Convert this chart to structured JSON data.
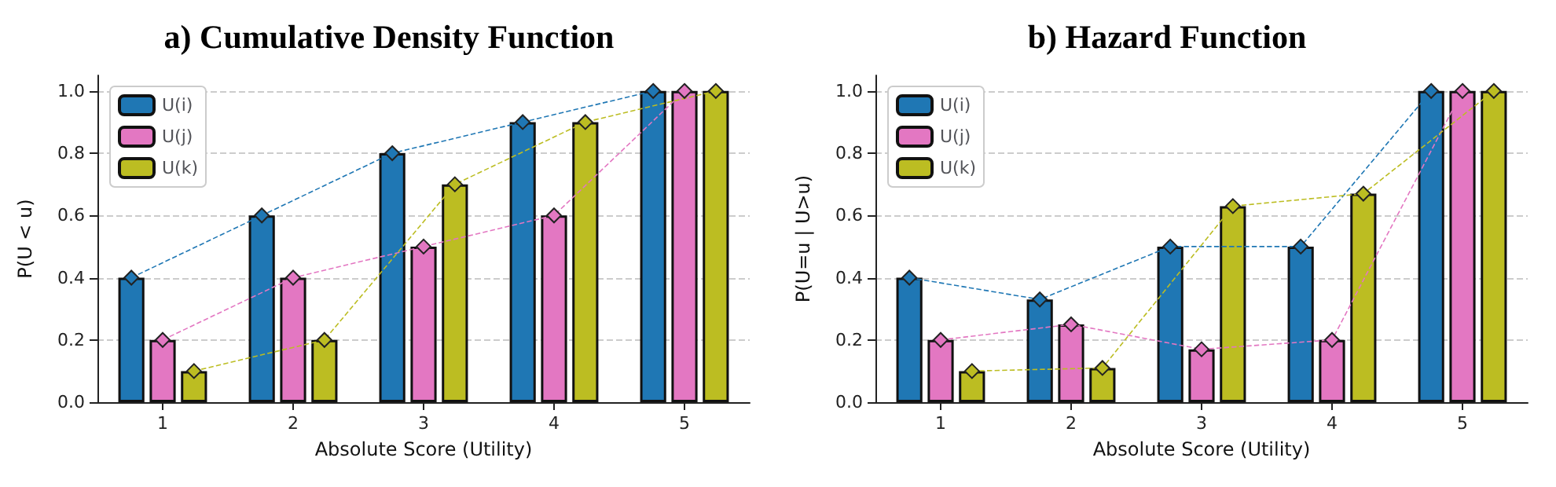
{
  "chart_data": [
    {
      "type": "bar",
      "title": "a) Cumulative Density Function",
      "xlabel": "Absolute Score (Utility)",
      "ylabel": "P(U < u)",
      "categories": [
        "1",
        "2",
        "3",
        "4",
        "5"
      ],
      "series": [
        {
          "name": "U(i)",
          "color": "#1f77b4",
          "values": [
            0.4,
            0.6,
            0.8,
            0.9,
            1.0
          ]
        },
        {
          "name": "U(j)",
          "color": "#e377c2",
          "values": [
            0.2,
            0.4,
            0.5,
            0.6,
            1.0
          ]
        },
        {
          "name": "U(k)",
          "color": "#bcbd22",
          "values": [
            0.1,
            0.2,
            0.7,
            0.9,
            1.0
          ]
        },
        {
          "type": "line",
          "color": "#1f77b4",
          "values": [
            0.4,
            0.6,
            0.8,
            0.9,
            1.0
          ]
        },
        {
          "type": "line",
          "color": "#e377c2",
          "values": [
            0.2,
            0.4,
            0.5,
            0.6,
            1.0
          ]
        },
        {
          "type": "line",
          "color": "#bcbd22",
          "values": [
            0.1,
            0.2,
            0.7,
            0.9,
            1.0
          ]
        }
      ],
      "ylim": [
        0,
        1.05
      ],
      "yticks": [
        {
          "value": 0,
          "label": "0.0"
        },
        {
          "value": 0.2,
          "label": "0.2"
        },
        {
          "value": 0.4,
          "label": "0.4"
        },
        {
          "value": 0.6,
          "label": "0.6"
        },
        {
          "value": 0.8,
          "label": "0.8"
        },
        {
          "value": 1,
          "label": "1.0"
        }
      ],
      "grid": "y",
      "legend": "top left",
      "marker": "diamond",
      "line_style": "dashed"
    },
    {
      "type": "bar",
      "title": "b) Hazard Function",
      "xlabel": "Absolute Score (Utility)",
      "ylabel": "P(U=u | U>u)",
      "categories": [
        "1",
        "2",
        "3",
        "4",
        "5"
      ],
      "series": [
        {
          "name": "U(i)",
          "color": "#1f77b4",
          "values": [
            0.4,
            0.33,
            0.5,
            0.5,
            1.0
          ]
        },
        {
          "name": "U(j)",
          "color": "#e377c2",
          "values": [
            0.2,
            0.25,
            0.17,
            0.2,
            1.0
          ]
        },
        {
          "name": "U(k)",
          "color": "#bcbd22",
          "values": [
            0.1,
            0.11,
            0.63,
            0.67,
            1.0
          ]
        },
        {
          "type": "line",
          "color": "#1f77b4",
          "values": [
            0.4,
            0.33,
            0.5,
            0.5,
            1.0
          ]
        },
        {
          "type": "line",
          "color": "#e377c2",
          "values": [
            0.2,
            0.25,
            0.17,
            0.2,
            1.0
          ]
        },
        {
          "type": "line",
          "color": "#bcbd22",
          "values": [
            0.1,
            0.11,
            0.63,
            0.67,
            1.0
          ]
        }
      ],
      "ylim": [
        0,
        1.05
      ],
      "yticks": [
        {
          "value": 0,
          "label": "0.0"
        },
        {
          "value": 0.2,
          "label": "0.2"
        },
        {
          "value": 0.4,
          "label": "0.4"
        },
        {
          "value": 0.6,
          "label": "0.6"
        },
        {
          "value": 0.8,
          "label": "0.8"
        },
        {
          "value": 1,
          "label": "1.0"
        }
      ],
      "grid": "y",
      "legend": "top left",
      "marker": "diamond",
      "line_style": "dashed"
    }
  ]
}
